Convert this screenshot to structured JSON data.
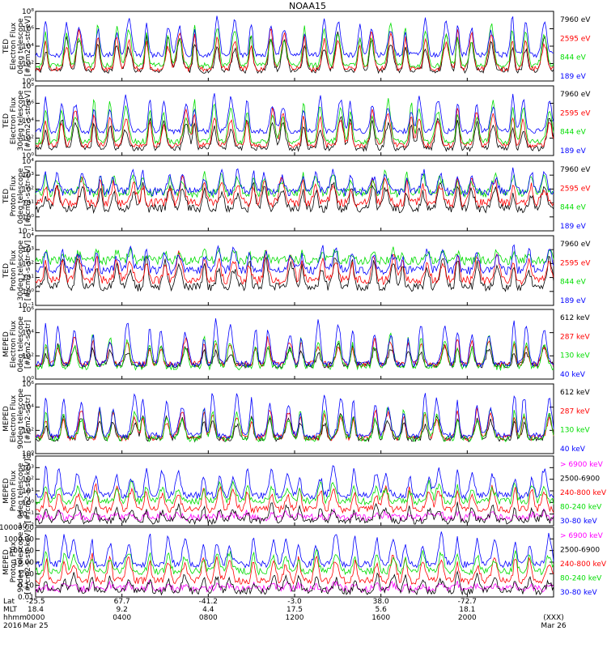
{
  "chart_data": {
    "type": "line",
    "title": "NOAA15",
    "colors": {
      "black": "#000000",
      "red": "#ff0000",
      "green": "#00dd00",
      "blue": "#0000ff",
      "magenta": "#ff00ff"
    },
    "time_axis": {
      "row_labels": [
        "Lat",
        "MLT",
        "hhmm",
        "2016"
      ],
      "ticks": [
        {
          "lat": "-25.5",
          "mlt": "18.4",
          "hhmm": "0000",
          "date": "Mar 25"
        },
        {
          "lat": "67.7",
          "mlt": "9.2",
          "hhmm": "0400",
          "date": ""
        },
        {
          "lat": "-41.2",
          "mlt": "4.4",
          "hhmm": "0800",
          "date": ""
        },
        {
          "lat": "-3.0",
          "mlt": "17.5",
          "hhmm": "1200",
          "date": ""
        },
        {
          "lat": "38.0",
          "mlt": "5.6",
          "hhmm": "1600",
          "date": ""
        },
        {
          "lat": "-72.7",
          "mlt": "18.1",
          "hhmm": "2000",
          "date": ""
        },
        {
          "lat": "",
          "mlt": "",
          "hhmm": "(XXX)",
          "date": "Mar 26"
        }
      ]
    },
    "panels": [
      {
        "ylabel": [
          "TED",
          "Electron Flux",
          "0deg telescope",
          "[#/cm2-s-str-eV]"
        ],
        "yticks": [
          "10⁰",
          "10²",
          "10⁴",
          "10⁶",
          "10⁸"
        ],
        "ylim_exp": [
          0,
          8
        ],
        "scale": "log",
        "series": [
          {
            "name": "7960 eV",
            "color": "black",
            "base": 1.2,
            "peak": 5.5
          },
          {
            "name": "2595 eV",
            "color": "red",
            "base": 1.4,
            "peak": 6.0
          },
          {
            "name": "844 eV",
            "color": "green",
            "base": 1.8,
            "peak": 6.8
          },
          {
            "name": "189 eV",
            "color": "blue",
            "base": 3.0,
            "peak": 7.5
          }
        ]
      },
      {
        "ylabel": [
          "TED",
          "Electron Flux",
          "30deg telescope",
          "[#/cm2-s-str-eV]"
        ],
        "yticks": [
          "10⁰",
          "10²",
          "10⁴",
          "10⁶",
          "10⁸"
        ],
        "ylim_exp": [
          0,
          8
        ],
        "scale": "log",
        "series": [
          {
            "name": "7960 eV",
            "color": "black",
            "base": 0.8,
            "peak": 4.5
          },
          {
            "name": "2595 eV",
            "color": "red",
            "base": 1.2,
            "peak": 5.5
          },
          {
            "name": "844 eV",
            "color": "green",
            "base": 1.6,
            "peak": 6.5
          },
          {
            "name": "189 eV",
            "color": "blue",
            "base": 2.8,
            "peak": 7.0
          }
        ]
      },
      {
        "ylabel": [
          "TED",
          "Proton Flux",
          "0deg telescope",
          "[#/cm2-s-str-eV]"
        ],
        "yticks": [
          "10⁻¹",
          "10⁰",
          "10¹",
          "10²",
          "10³",
          "10⁴"
        ],
        "ylim_exp": [
          -1,
          4
        ],
        "scale": "log",
        "series": [
          {
            "name": "7960 eV",
            "color": "black",
            "base": 0.6,
            "peak": 2.4
          },
          {
            "name": "2595 eV",
            "color": "red",
            "base": 1.0,
            "peak": 2.9
          },
          {
            "name": "844 eV",
            "color": "green",
            "base": 1.7,
            "peak": 3.2
          },
          {
            "name": "189 eV",
            "color": "blue",
            "base": 1.8,
            "peak": 3.4
          }
        ]
      },
      {
        "ylabel": [
          "TED",
          "Proton Flux",
          "30deg telescope",
          "[#/cm2-s-str-eV]"
        ],
        "yticks": [
          "10⁻¹",
          "10⁰",
          "10¹",
          "10²",
          "10³",
          "10⁴"
        ],
        "ylim_exp": [
          -1,
          4
        ],
        "scale": "log",
        "series": [
          {
            "name": "7960 eV",
            "color": "black",
            "base": 0.3,
            "peak": 2.5
          },
          {
            "name": "2595 eV",
            "color": "red",
            "base": 0.8,
            "peak": 2.8
          },
          {
            "name": "844 eV",
            "color": "green",
            "base": 2.2,
            "peak": 3.0
          },
          {
            "name": "189 eV",
            "color": "blue",
            "base": 1.5,
            "peak": 3.2
          }
        ]
      },
      {
        "ylabel": [
          "MEPED",
          "Electron Flux",
          "0deg telescope",
          "[#/cm2-s-str]"
        ],
        "yticks": [
          "10⁰",
          "10²",
          "10⁴",
          "10⁶"
        ],
        "ylim_exp": [
          0,
          7
        ],
        "scale": "log",
        "series": [
          {
            "name": "612 keV",
            "color": "black",
            "base": 1.4,
            "peak": 3.5
          },
          {
            "name": "287 keV",
            "color": "red",
            "base": 1.5,
            "peak": 4.2
          },
          {
            "name": "130 keV",
            "color": "green",
            "base": 1.2,
            "peak": 4.5
          },
          {
            "name": "40 keV",
            "color": "blue",
            "base": 1.5,
            "peak": 6.0
          }
        ]
      },
      {
        "ylabel": [
          "MEPED",
          "Electron Flux",
          "90deg telescope",
          "[#/cm2-s-str]"
        ],
        "yticks": [
          "10⁰",
          "10²",
          "10⁴",
          "10⁶"
        ],
        "ylim_exp": [
          0,
          7
        ],
        "scale": "log",
        "series": [
          {
            "name": "612 keV",
            "color": "black",
            "base": 1.5,
            "peak": 4.0
          },
          {
            "name": "287 keV",
            "color": "red",
            "base": 1.6,
            "peak": 4.6
          },
          {
            "name": "130 keV",
            "color": "green",
            "base": 1.5,
            "peak": 4.8
          },
          {
            "name": "40 keV",
            "color": "blue",
            "base": 1.8,
            "peak": 6.2
          }
        ]
      },
      {
        "ylabel": [
          "MEPED",
          "Proton Flux",
          "0deg telescope",
          "[#/cm2-s-str-keV]"
        ],
        "yticks": [
          "10⁻²",
          "10⁻¹",
          "10⁰",
          "10¹",
          "10²",
          "10³",
          "10⁴"
        ],
        "ylim_exp": [
          -2,
          4
        ],
        "scale": "log",
        "series": [
          {
            "name": "> 6900 keV",
            "color": "magenta",
            "base": -1.3,
            "peak": -0.8
          },
          {
            "name": "2500-6900",
            "color": "black",
            "base": -1.6,
            "peak": -0.2
          },
          {
            "name": "240-800 keV",
            "color": "red",
            "base": -0.6,
            "peak": 1.5
          },
          {
            "name": "80-240 keV",
            "color": "green",
            "base": 0.1,
            "peak": 1.8
          },
          {
            "name": "30-80 keV",
            "color": "blue",
            "base": 0.6,
            "peak": 3.0
          }
        ]
      },
      {
        "ylabel": [
          "MEPED",
          "Proton Flux",
          "90deg telescope",
          "[#/cm2-s-str-keV]"
        ],
        "yticks": [
          "0.01",
          "0.10",
          "1.00",
          "10.00",
          "100.00",
          "1000.00",
          "10000.00"
        ],
        "ylim_exp": [
          -2,
          4
        ],
        "scale": "log",
        "series": [
          {
            "name": "> 6900 keV",
            "color": "magenta",
            "base": -1.3,
            "peak": -0.8
          },
          {
            "name": "2500-6900",
            "color": "black",
            "base": -1.5,
            "peak": 0.0
          },
          {
            "name": "240-800 keV",
            "color": "red",
            "base": -0.6,
            "peak": 1.7
          },
          {
            "name": "80-240 keV",
            "color": "green",
            "base": 0.2,
            "peak": 2.0
          },
          {
            "name": "30-80 keV",
            "color": "blue",
            "base": 0.8,
            "peak": 3.5
          }
        ]
      }
    ]
  }
}
